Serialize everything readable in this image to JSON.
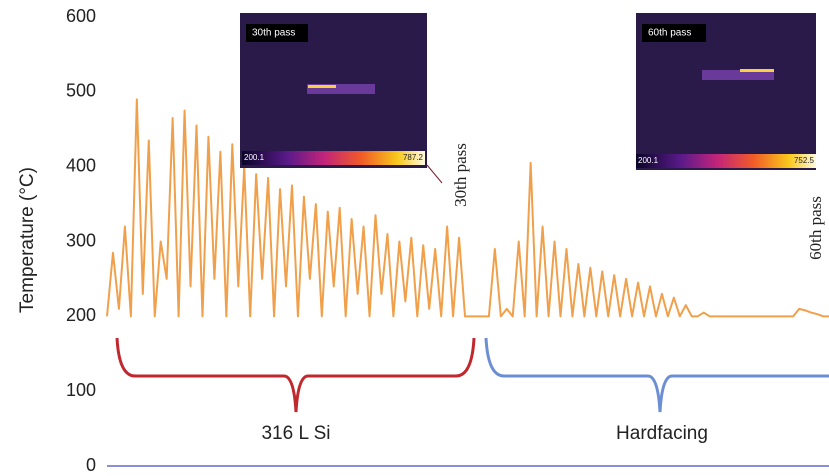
{
  "chart_data": {
    "type": "line",
    "y_label": "Temperature (°C)",
    "ylim": [
      0,
      600
    ],
    "yticks": [
      0,
      100,
      200,
      300,
      400,
      500,
      600
    ],
    "grid": false,
    "color": "#f0a04b",
    "values": [
      200,
      285,
      210,
      320,
      200,
      490,
      230,
      435,
      200,
      300,
      250,
      465,
      200,
      475,
      240,
      455,
      200,
      440,
      250,
      420,
      200,
      430,
      240,
      400,
      200,
      390,
      250,
      385,
      200,
      370,
      240,
      375,
      200,
      360,
      250,
      350,
      200,
      340,
      240,
      345,
      200,
      330,
      230,
      320,
      200,
      335,
      230,
      310,
      200,
      300,
      220,
      305,
      200,
      295,
      210,
      290,
      200,
      320,
      200,
      305,
      200,
      200,
      200,
      200,
      200,
      290,
      200,
      210,
      200,
      300,
      200,
      405,
      200,
      320,
      200,
      300,
      200,
      290,
      200,
      270,
      200,
      265,
      200,
      260,
      200,
      255,
      200,
      250,
      200,
      245,
      200,
      240,
      200,
      230,
      200,
      225,
      200,
      215,
      200,
      200,
      205,
      200,
      200,
      200,
      200,
      200,
      200,
      200,
      200,
      200,
      200,
      200,
      200,
      200,
      200,
      200,
      210,
      208,
      205,
      203,
      200,
      200
    ],
    "annotations": [
      "30th pass",
      "60th pass"
    ],
    "groups": [
      {
        "label": "316 L Si",
        "color": "#c0282e"
      },
      {
        "label": "Hardfacing",
        "color": "#6c8fd4"
      }
    ],
    "insets": [
      {
        "title": "30th pass",
        "scale_min": "200.1",
        "scale_max": "787.2"
      },
      {
        "title": "60th pass",
        "scale_min": "200.1",
        "scale_max": "752.5"
      }
    ]
  }
}
